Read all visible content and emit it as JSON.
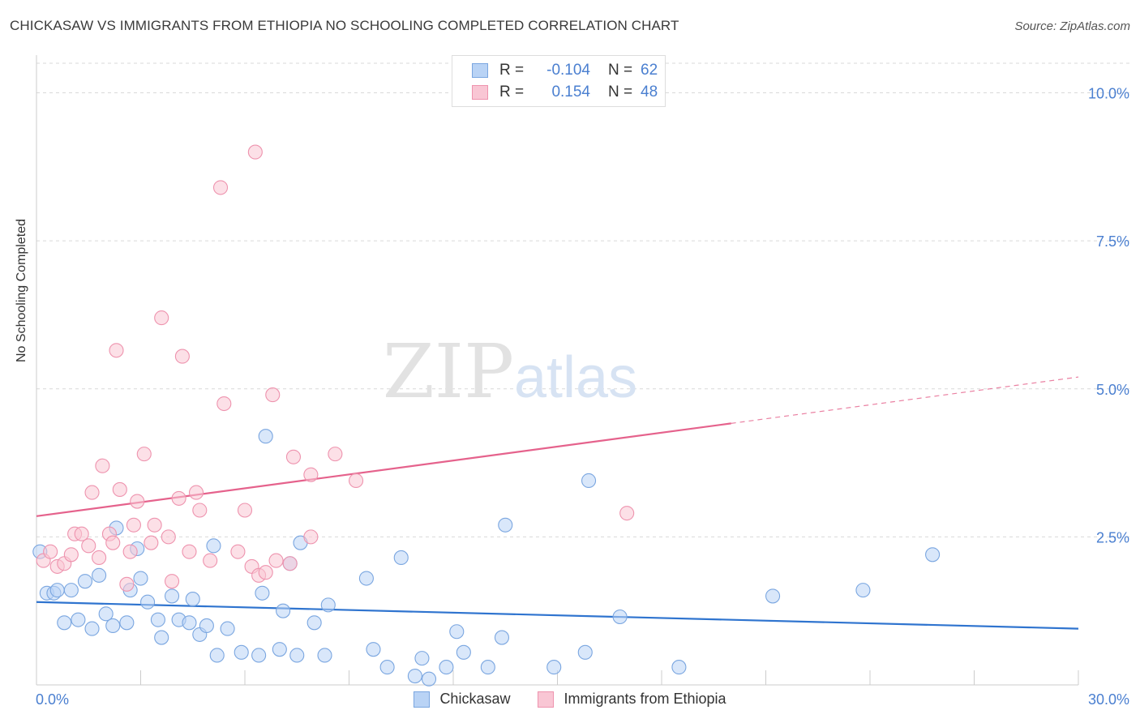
{
  "header": {
    "title": "CHICKASAW VS IMMIGRANTS FROM ETHIOPIA NO SCHOOLING COMPLETED CORRELATION CHART",
    "source": "Source: ZipAtlas.com"
  },
  "legend": {
    "rows": [
      {
        "r_label": "R =",
        "r_value": "-0.104",
        "n_label": "N =",
        "n_value": "62"
      },
      {
        "r_label": "R =",
        "r_value": "0.154",
        "n_label": "N =",
        "n_value": "48"
      }
    ]
  },
  "watermark": {
    "zip": "ZIP",
    "atlas": "atlas"
  },
  "colors": {
    "blue_fill": "#b9d3f5",
    "blue_stroke": "#7aa6e0",
    "blue_line": "#2f74cf",
    "pink_fill": "#f9c6d4",
    "pink_stroke": "#ee93ae",
    "pink_line": "#e5628c",
    "tick_label": "#4a7fd0",
    "grid": "#d9d9d9"
  },
  "chart_data": {
    "type": "scatter",
    "title": "CHICKASAW VS IMMIGRANTS FROM ETHIOPIA NO SCHOOLING COMPLETED CORRELATION CHART",
    "xlabel": "",
    "ylabel": "No Schooling Completed",
    "xlim": [
      0,
      30
    ],
    "ylim": [
      0,
      10.5
    ],
    "x_tick_labels": [
      "0.0%",
      "30.0%"
    ],
    "y_ticks": [
      2.5,
      5.0,
      7.5,
      10.0
    ],
    "y_tick_labels": [
      "2.5%",
      "5.0%",
      "7.5%",
      "10.0%"
    ],
    "grid": true,
    "legend_position": "top-center",
    "series": [
      {
        "name": "Chickasaw",
        "color": "#b9d3f5",
        "r": -0.104,
        "n": 62,
        "trend": {
          "x": [
            0,
            30
          ],
          "y": [
            1.4,
            0.95
          ],
          "dashed_from": null
        },
        "points": [
          [
            0.1,
            2.25
          ],
          [
            0.3,
            1.55
          ],
          [
            0.5,
            1.55
          ],
          [
            0.6,
            1.6
          ],
          [
            0.8,
            1.05
          ],
          [
            1.0,
            1.6
          ],
          [
            1.2,
            1.1
          ],
          [
            1.4,
            1.75
          ],
          [
            1.6,
            0.95
          ],
          [
            1.8,
            1.85
          ],
          [
            2.0,
            1.2
          ],
          [
            2.2,
            1.0
          ],
          [
            2.3,
            2.65
          ],
          [
            2.6,
            1.05
          ],
          [
            2.7,
            1.6
          ],
          [
            2.9,
            2.3
          ],
          [
            3.0,
            1.8
          ],
          [
            3.2,
            1.4
          ],
          [
            3.5,
            1.1
          ],
          [
            3.6,
            0.8
          ],
          [
            3.9,
            1.5
          ],
          [
            4.1,
            1.1
          ],
          [
            4.4,
            1.05
          ],
          [
            4.5,
            1.45
          ],
          [
            4.7,
            0.85
          ],
          [
            4.9,
            1.0
          ],
          [
            5.1,
            2.35
          ],
          [
            5.2,
            0.5
          ],
          [
            5.5,
            0.95
          ],
          [
            5.9,
            0.55
          ],
          [
            6.4,
            0.5
          ],
          [
            6.5,
            1.55
          ],
          [
            6.6,
            4.2
          ],
          [
            7.0,
            0.6
          ],
          [
            7.1,
            1.25
          ],
          [
            7.3,
            2.05
          ],
          [
            7.5,
            0.5
          ],
          [
            7.6,
            2.4
          ],
          [
            8.0,
            1.05
          ],
          [
            8.3,
            0.5
          ],
          [
            8.4,
            1.35
          ],
          [
            9.5,
            1.8
          ],
          [
            9.7,
            0.6
          ],
          [
            10.1,
            0.3
          ],
          [
            10.5,
            2.15
          ],
          [
            10.9,
            0.15
          ],
          [
            11.1,
            0.45
          ],
          [
            11.3,
            0.1
          ],
          [
            11.8,
            0.3
          ],
          [
            12.1,
            0.9
          ],
          [
            12.3,
            0.55
          ],
          [
            13.0,
            0.3
          ],
          [
            13.4,
            0.8
          ],
          [
            13.5,
            2.7
          ],
          [
            14.9,
            0.3
          ],
          [
            15.8,
            0.55
          ],
          [
            15.9,
            3.45
          ],
          [
            16.8,
            1.15
          ],
          [
            18.5,
            0.3
          ],
          [
            21.2,
            1.5
          ],
          [
            23.8,
            1.6
          ],
          [
            25.8,
            2.2
          ]
        ]
      },
      {
        "name": "Immigrants from Ethiopia",
        "color": "#f9c6d4",
        "r": 0.154,
        "n": 48,
        "trend": {
          "x": [
            0,
            30
          ],
          "y": [
            2.85,
            5.2
          ],
          "dashed_from": 20
        },
        "points": [
          [
            0.2,
            2.1
          ],
          [
            0.4,
            2.25
          ],
          [
            0.6,
            2.0
          ],
          [
            0.8,
            2.05
          ],
          [
            1.0,
            2.2
          ],
          [
            1.1,
            2.55
          ],
          [
            1.3,
            2.55
          ],
          [
            1.5,
            2.35
          ],
          [
            1.6,
            3.25
          ],
          [
            1.8,
            2.15
          ],
          [
            1.9,
            3.7
          ],
          [
            2.1,
            2.55
          ],
          [
            2.2,
            2.4
          ],
          [
            2.3,
            5.65
          ],
          [
            2.4,
            3.3
          ],
          [
            2.6,
            1.7
          ],
          [
            2.7,
            2.25
          ],
          [
            2.8,
            2.7
          ],
          [
            2.9,
            3.1
          ],
          [
            3.1,
            3.9
          ],
          [
            3.3,
            2.4
          ],
          [
            3.4,
            2.7
          ],
          [
            3.6,
            6.2
          ],
          [
            3.8,
            2.5
          ],
          [
            3.9,
            1.75
          ],
          [
            4.1,
            3.15
          ],
          [
            4.2,
            5.55
          ],
          [
            4.4,
            2.25
          ],
          [
            4.6,
            3.25
          ],
          [
            4.7,
            2.95
          ],
          [
            5.0,
            2.1
          ],
          [
            5.3,
            8.4
          ],
          [
            5.4,
            4.75
          ],
          [
            5.8,
            2.25
          ],
          [
            6.0,
            2.95
          ],
          [
            6.2,
            2.0
          ],
          [
            6.3,
            9.0
          ],
          [
            6.4,
            1.85
          ],
          [
            6.6,
            1.9
          ],
          [
            6.8,
            4.9
          ],
          [
            6.9,
            2.1
          ],
          [
            7.3,
            2.05
          ],
          [
            7.4,
            3.85
          ],
          [
            7.9,
            3.55
          ],
          [
            7.9,
            2.5
          ],
          [
            8.6,
            3.9
          ],
          [
            9.2,
            3.45
          ],
          [
            17.0,
            2.9
          ]
        ]
      }
    ]
  }
}
